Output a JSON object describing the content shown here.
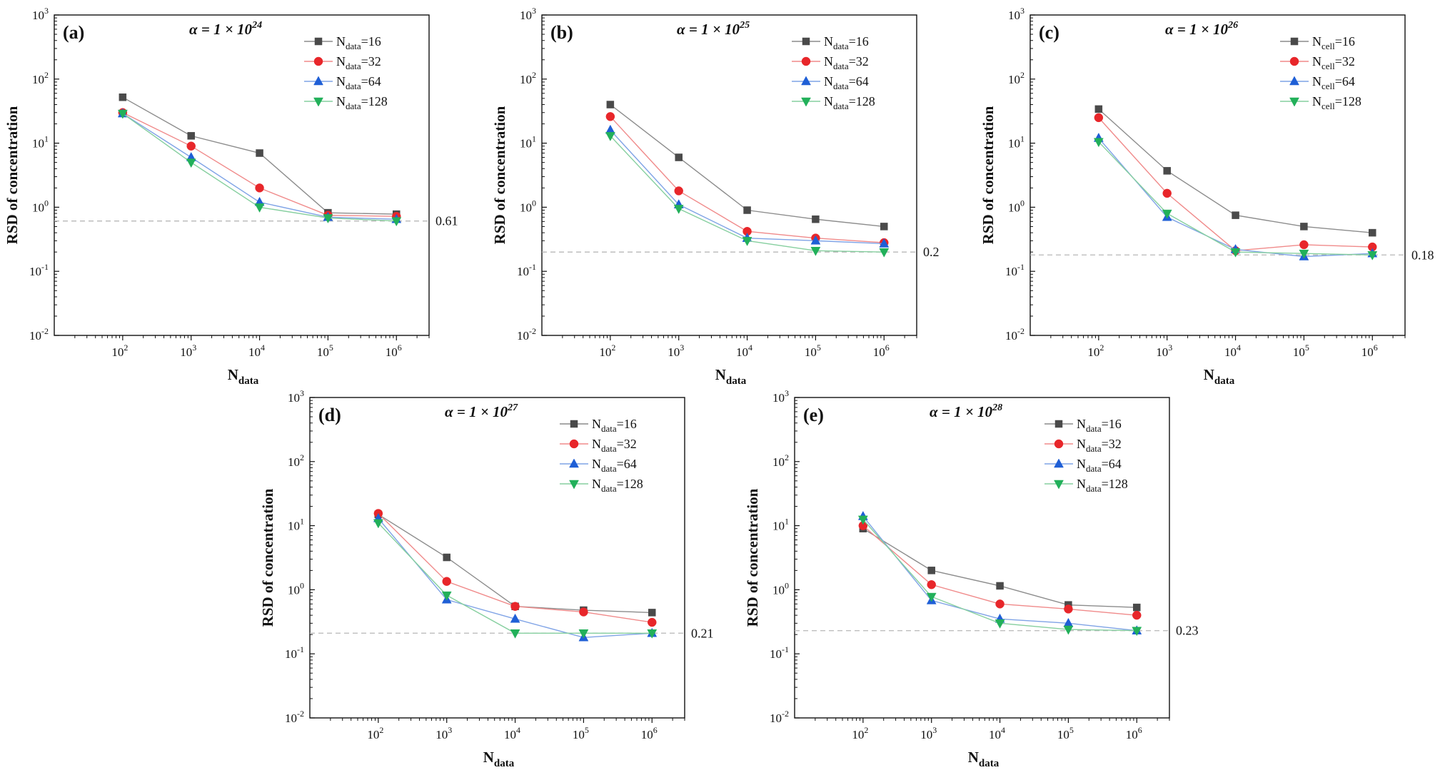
{
  "chart_data": [
    {
      "type": "line",
      "panel": "(a)",
      "title_prefix": "α = 1 × 10",
      "title_exp": "24",
      "xlabel": "N",
      "xlabel_sub": "data",
      "ylabel": "RSD of concentration",
      "x": [
        100,
        1000,
        10000,
        100000,
        1000000
      ],
      "xlim": [
        10,
        3000000
      ],
      "ylim": [
        0.01,
        1000
      ],
      "xscale": "log",
      "yscale": "log",
      "x_ticks": [
        {
          "base": "10",
          "exp": "2"
        },
        {
          "base": "10",
          "exp": "3"
        },
        {
          "base": "10",
          "exp": "4"
        },
        {
          "base": "10",
          "exp": "5"
        },
        {
          "base": "10",
          "exp": "6"
        }
      ],
      "y_ticks": [
        {
          "base": "10",
          "exp": "-2"
        },
        {
          "base": "10",
          "exp": "-1"
        },
        {
          "base": "10",
          "exp": "0"
        },
        {
          "base": "10",
          "exp": "1"
        },
        {
          "base": "10",
          "exp": "2"
        },
        {
          "base": "10",
          "exp": "3"
        }
      ],
      "reference_line": {
        "value": 0.61,
        "label": "0.61"
      },
      "legend_position": "top-right",
      "series": [
        {
          "legend_main": "N",
          "legend_sub": "data",
          "legend_suffix": "=16",
          "marker": "square",
          "color": "#4a4a4a",
          "line_color": "#8c8c8c",
          "values": [
            52,
            13,
            7,
            0.82,
            0.78
          ]
        },
        {
          "legend_main": "N",
          "legend_sub": "data",
          "legend_suffix": "=32",
          "marker": "circle",
          "color": "#e8262a",
          "line_color": "#f08a8a",
          "values": [
            30,
            9,
            2,
            0.75,
            0.72
          ]
        },
        {
          "legend_main": "N",
          "legend_sub": "data",
          "legend_suffix": "=64",
          "marker": "triangle-up",
          "color": "#1f5fd6",
          "line_color": "#7fa3e6",
          "values": [
            29,
            6,
            1.2,
            0.7,
            0.65
          ]
        },
        {
          "legend_main": "N",
          "legend_sub": "data",
          "legend_suffix": "=128",
          "marker": "triangle-down",
          "color": "#22b05a",
          "line_color": "#86cf9f",
          "values": [
            29,
            5,
            1,
            0.68,
            0.61
          ]
        }
      ]
    },
    {
      "type": "line",
      "panel": "(b)",
      "title_prefix": "α = 1 × 10",
      "title_exp": "25",
      "xlabel": "N",
      "xlabel_sub": "data",
      "ylabel": "RSD of concentration",
      "x": [
        100,
        1000,
        10000,
        100000,
        1000000
      ],
      "xlim": [
        10,
        3000000
      ],
      "ylim": [
        0.01,
        1000
      ],
      "xscale": "log",
      "yscale": "log",
      "x_ticks": [
        {
          "base": "10",
          "exp": "2"
        },
        {
          "base": "10",
          "exp": "3"
        },
        {
          "base": "10",
          "exp": "4"
        },
        {
          "base": "10",
          "exp": "5"
        },
        {
          "base": "10",
          "exp": "6"
        }
      ],
      "y_ticks": [
        {
          "base": "10",
          "exp": "-2"
        },
        {
          "base": "10",
          "exp": "-1"
        },
        {
          "base": "10",
          "exp": "0"
        },
        {
          "base": "10",
          "exp": "1"
        },
        {
          "base": "10",
          "exp": "2"
        },
        {
          "base": "10",
          "exp": "3"
        }
      ],
      "reference_line": {
        "value": 0.2,
        "label": "0.2"
      },
      "legend_position": "top-right",
      "series": [
        {
          "legend_main": "N",
          "legend_sub": "data",
          "legend_suffix": "=16",
          "marker": "square",
          "color": "#4a4a4a",
          "line_color": "#8c8c8c",
          "values": [
            40,
            6,
            0.9,
            0.65,
            0.5
          ]
        },
        {
          "legend_main": "N",
          "legend_sub": "data",
          "legend_suffix": "=32",
          "marker": "circle",
          "color": "#e8262a",
          "line_color": "#f08a8a",
          "values": [
            26,
            1.8,
            0.42,
            0.33,
            0.28
          ]
        },
        {
          "legend_main": "N",
          "legend_sub": "data",
          "legend_suffix": "=64",
          "marker": "triangle-up",
          "color": "#1f5fd6",
          "line_color": "#7fa3e6",
          "values": [
            16,
            1.1,
            0.33,
            0.3,
            0.27
          ]
        },
        {
          "legend_main": "N",
          "legend_sub": "data",
          "legend_suffix": "=128",
          "marker": "triangle-down",
          "color": "#22b05a",
          "line_color": "#86cf9f",
          "values": [
            13,
            0.95,
            0.3,
            0.21,
            0.2
          ]
        }
      ]
    },
    {
      "type": "line",
      "panel": "(c)",
      "title_prefix": "α = 1 × 10",
      "title_exp": "26",
      "xlabel": "N",
      "xlabel_sub": "data",
      "ylabel": "RSD of concentration",
      "x": [
        100,
        1000,
        10000,
        100000,
        1000000
      ],
      "xlim": [
        10,
        3000000
      ],
      "ylim": [
        0.01,
        1000
      ],
      "xscale": "log",
      "yscale": "log",
      "x_ticks": [
        {
          "base": "10",
          "exp": "2"
        },
        {
          "base": "10",
          "exp": "3"
        },
        {
          "base": "10",
          "exp": "4"
        },
        {
          "base": "10",
          "exp": "5"
        },
        {
          "base": "10",
          "exp": "6"
        }
      ],
      "y_ticks": [
        {
          "base": "10",
          "exp": "-2"
        },
        {
          "base": "10",
          "exp": "-1"
        },
        {
          "base": "10",
          "exp": "0"
        },
        {
          "base": "10",
          "exp": "1"
        },
        {
          "base": "10",
          "exp": "2"
        },
        {
          "base": "10",
          "exp": "3"
        }
      ],
      "reference_line": {
        "value": 0.18,
        "label": "0.18"
      },
      "legend_position": "top-right",
      "series": [
        {
          "legend_main": "N",
          "legend_sub": "cell",
          "legend_suffix": "=16",
          "marker": "square",
          "color": "#4a4a4a",
          "line_color": "#8c8c8c",
          "values": [
            34,
            3.7,
            0.75,
            0.5,
            0.4
          ]
        },
        {
          "legend_main": "N",
          "legend_sub": "cell",
          "legend_suffix": "=32",
          "marker": "circle",
          "color": "#e8262a",
          "line_color": "#f08a8a",
          "values": [
            25,
            1.65,
            0.21,
            0.26,
            0.24
          ]
        },
        {
          "legend_main": "N",
          "legend_sub": "cell",
          "legend_suffix": "=64",
          "marker": "triangle-up",
          "color": "#1f5fd6",
          "line_color": "#7fa3e6",
          "values": [
            12,
            0.7,
            0.22,
            0.17,
            0.19
          ]
        },
        {
          "legend_main": "N",
          "legend_sub": "cell",
          "legend_suffix": "=128",
          "marker": "triangle-down",
          "color": "#22b05a",
          "line_color": "#86cf9f",
          "values": [
            10.5,
            0.8,
            0.2,
            0.19,
            0.18
          ]
        }
      ]
    },
    {
      "type": "line",
      "panel": "(d)",
      "title_prefix": "α = 1 × 10",
      "title_exp": "27",
      "xlabel": "N",
      "xlabel_sub": "data",
      "ylabel": "RSD of concentration",
      "x": [
        100,
        1000,
        10000,
        100000,
        1000000
      ],
      "xlim": [
        10,
        3000000
      ],
      "ylim": [
        0.01,
        1000
      ],
      "xscale": "log",
      "yscale": "log",
      "x_ticks": [
        {
          "base": "10",
          "exp": "2"
        },
        {
          "base": "10",
          "exp": "3"
        },
        {
          "base": "10",
          "exp": "4"
        },
        {
          "base": "10",
          "exp": "5"
        },
        {
          "base": "10",
          "exp": "6"
        }
      ],
      "y_ticks": [
        {
          "base": "10",
          "exp": "-2"
        },
        {
          "base": "10",
          "exp": "-1"
        },
        {
          "base": "10",
          "exp": "0"
        },
        {
          "base": "10",
          "exp": "1"
        },
        {
          "base": "10",
          "exp": "2"
        },
        {
          "base": "10",
          "exp": "3"
        }
      ],
      "reference_line": {
        "value": 0.21,
        "label": "0.21"
      },
      "legend_position": "top-right",
      "series": [
        {
          "legend_main": "N",
          "legend_sub": "data",
          "legend_suffix": "=16",
          "marker": "square",
          "color": "#4a4a4a",
          "line_color": "#8c8c8c",
          "values": [
            15,
            3.2,
            0.55,
            0.48,
            0.44
          ]
        },
        {
          "legend_main": "N",
          "legend_sub": "data",
          "legend_suffix": "=32",
          "marker": "circle",
          "color": "#e8262a",
          "line_color": "#f08a8a",
          "values": [
            15.5,
            1.35,
            0.55,
            0.45,
            0.31
          ]
        },
        {
          "legend_main": "N",
          "legend_sub": "data",
          "legend_suffix": "=64",
          "marker": "triangle-up",
          "color": "#1f5fd6",
          "line_color": "#7fa3e6",
          "values": [
            13,
            0.7,
            0.35,
            0.18,
            0.21
          ]
        },
        {
          "legend_main": "N",
          "legend_sub": "data",
          "legend_suffix": "=128",
          "marker": "triangle-down",
          "color": "#22b05a",
          "line_color": "#86cf9f",
          "values": [
            11,
            0.82,
            0.21,
            0.21,
            0.21
          ]
        }
      ]
    },
    {
      "type": "line",
      "panel": "(e)",
      "title_prefix": "α = 1 × 10",
      "title_exp": "28",
      "xlabel": "N",
      "xlabel_sub": "data",
      "ylabel": "RSD of concentration",
      "x": [
        100,
        1000,
        10000,
        100000,
        1000000
      ],
      "xlim": [
        10,
        3000000
      ],
      "ylim": [
        0.01,
        1000
      ],
      "xscale": "log",
      "yscale": "log",
      "x_ticks": [
        {
          "base": "10",
          "exp": "2"
        },
        {
          "base": "10",
          "exp": "3"
        },
        {
          "base": "10",
          "exp": "4"
        },
        {
          "base": "10",
          "exp": "5"
        },
        {
          "base": "10",
          "exp": "6"
        }
      ],
      "y_ticks": [
        {
          "base": "10",
          "exp": "-2"
        },
        {
          "base": "10",
          "exp": "-1"
        },
        {
          "base": "10",
          "exp": "0"
        },
        {
          "base": "10",
          "exp": "1"
        },
        {
          "base": "10",
          "exp": "2"
        },
        {
          "base": "10",
          "exp": "3"
        }
      ],
      "reference_line": {
        "value": 0.23,
        "label": "0.23"
      },
      "legend_position": "top-right",
      "series": [
        {
          "legend_main": "N",
          "legend_sub": "data",
          "legend_suffix": "=16",
          "marker": "square",
          "color": "#4a4a4a",
          "line_color": "#8c8c8c",
          "values": [
            9,
            2,
            1.15,
            0.58,
            0.53
          ]
        },
        {
          "legend_main": "N",
          "legend_sub": "data",
          "legend_suffix": "=32",
          "marker": "circle",
          "color": "#e8262a",
          "line_color": "#f08a8a",
          "values": [
            10,
            1.2,
            0.6,
            0.5,
            0.4
          ]
        },
        {
          "legend_main": "N",
          "legend_sub": "data",
          "legend_suffix": "=64",
          "marker": "triangle-up",
          "color": "#1f5fd6",
          "line_color": "#7fa3e6",
          "values": [
            14,
            0.68,
            0.35,
            0.3,
            0.23
          ]
        },
        {
          "legend_main": "N",
          "legend_sub": "data",
          "legend_suffix": "=128",
          "marker": "triangle-down",
          "color": "#22b05a",
          "line_color": "#86cf9f",
          "values": [
            12.5,
            0.78,
            0.3,
            0.24,
            0.23
          ]
        }
      ]
    }
  ]
}
